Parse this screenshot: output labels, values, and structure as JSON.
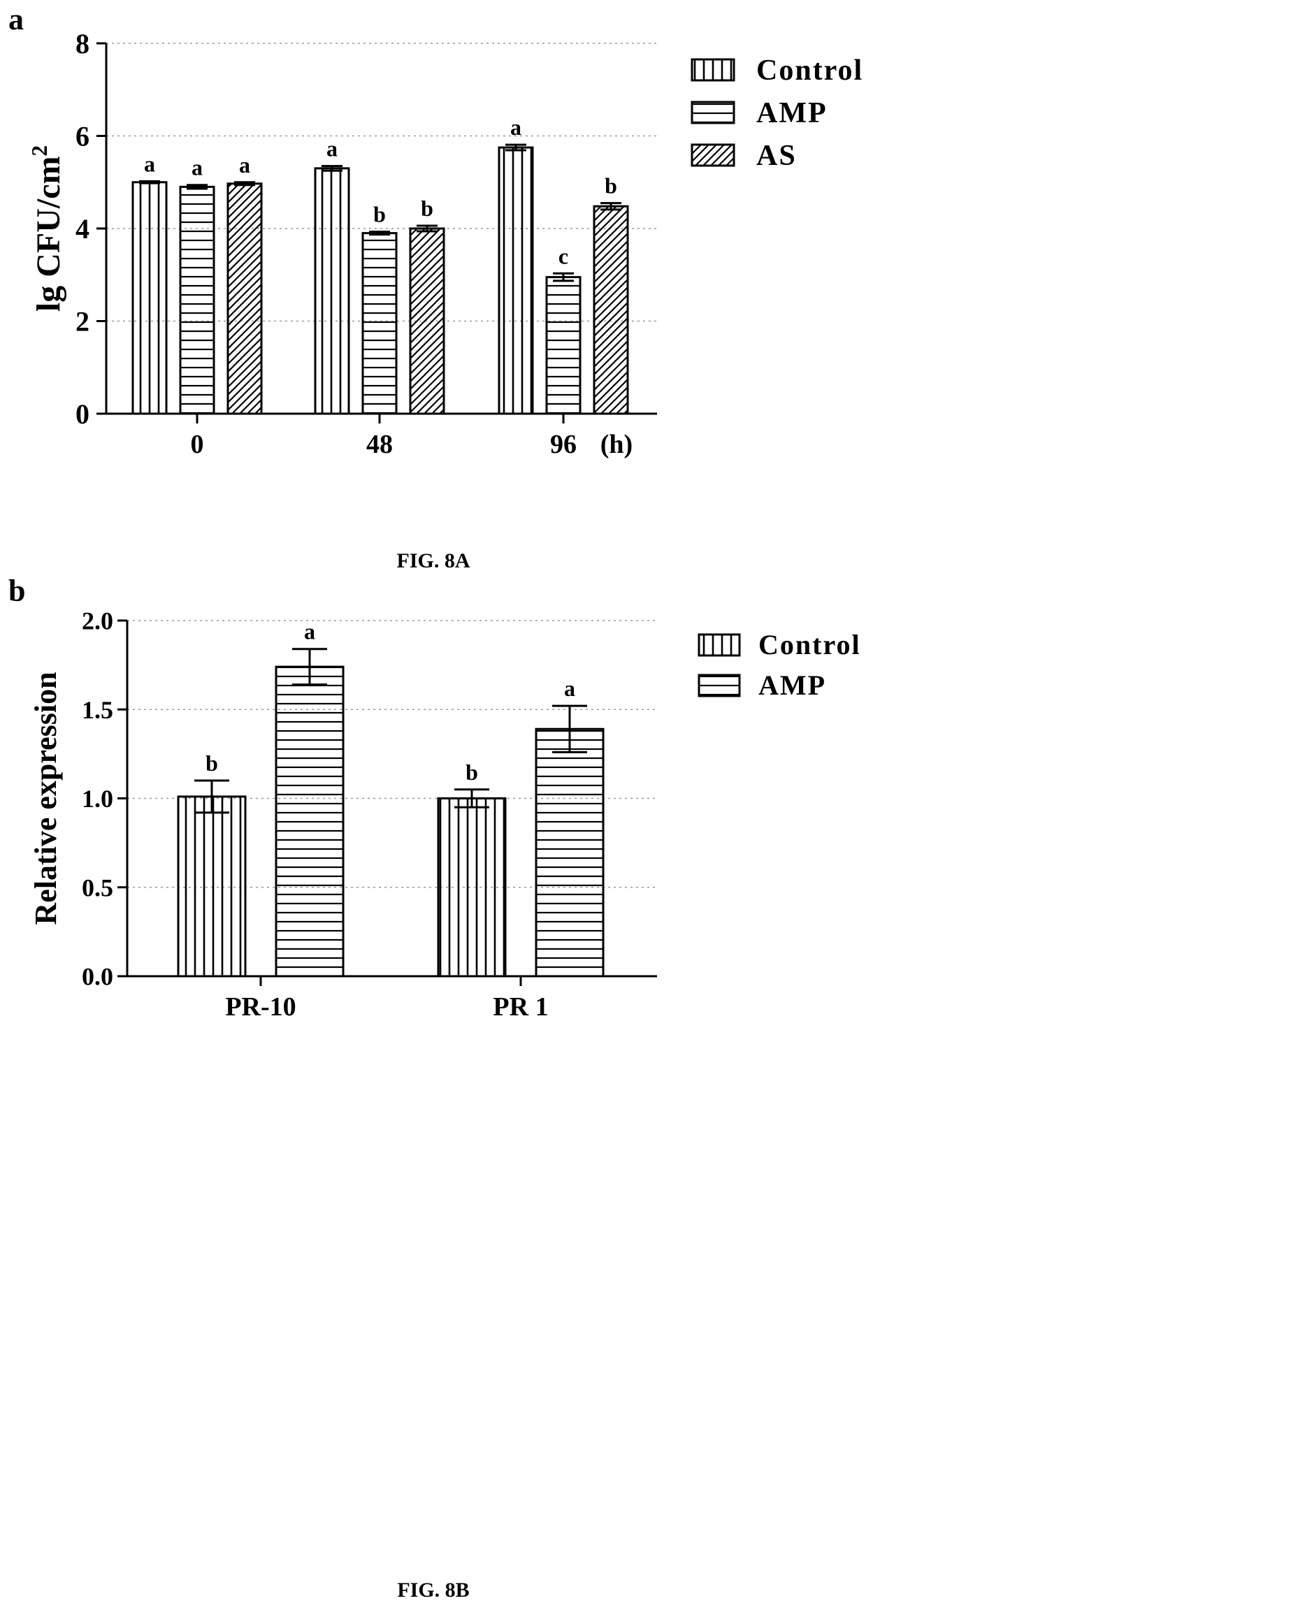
{
  "chart_data": [
    {
      "panel_label": "a",
      "type": "bar",
      "categories": [
        "0",
        "48",
        "96"
      ],
      "x_unit_label": "(h)",
      "ylabel": "lg CFU/cm",
      "ylabel_superscript": "2",
      "ylim": [
        0,
        8
      ],
      "yticks": [
        "0",
        "2",
        "4",
        "6",
        "8"
      ],
      "grid": true,
      "legend_position": "top-right",
      "series": [
        {
          "name": "Control",
          "pattern": "vertical-stripes",
          "values": [
            5.0,
            5.3,
            5.75
          ],
          "errors": [
            0.02,
            0.05,
            0.06
          ],
          "sig_letters": [
            "a",
            "a",
            "a"
          ]
        },
        {
          "name": "AMP",
          "pattern": "horizontal-stripes",
          "values": [
            4.9,
            3.9,
            2.95
          ],
          "errors": [
            0.04,
            0.03,
            0.08
          ],
          "sig_letters": [
            "a",
            "b",
            "c"
          ]
        },
        {
          "name": "AS",
          "pattern": "diagonal-hatch",
          "values": [
            4.97,
            4.0,
            4.48
          ],
          "errors": [
            0.03,
            0.06,
            0.07
          ],
          "sig_letters": [
            "a",
            "b",
            "b"
          ]
        }
      ],
      "caption": "FIG. 8A"
    },
    {
      "panel_label": "b",
      "type": "bar",
      "categories": [
        "PR-10",
        "PR 1"
      ],
      "ylabel": "Relative expression",
      "ylim": [
        0,
        2
      ],
      "yticks": [
        "0.0",
        "0.5",
        "1.0",
        "1.5",
        "2.0"
      ],
      "grid": true,
      "legend_position": "top-right",
      "series": [
        {
          "name": "Control",
          "pattern": "vertical-stripes",
          "values": [
            1.01,
            1.0
          ],
          "errors": [
            0.09,
            0.05
          ],
          "sig_letters": [
            "b",
            "b"
          ]
        },
        {
          "name": "AMP",
          "pattern": "horizontal-stripes",
          "values": [
            1.74,
            1.39
          ],
          "errors": [
            0.1,
            0.13
          ],
          "sig_letters": [
            "a",
            "a"
          ]
        }
      ],
      "caption": "FIG. 8B"
    }
  ],
  "colors": {
    "ink": "#000000",
    "grid": "#9a9a9a",
    "background": "#ffffff"
  }
}
